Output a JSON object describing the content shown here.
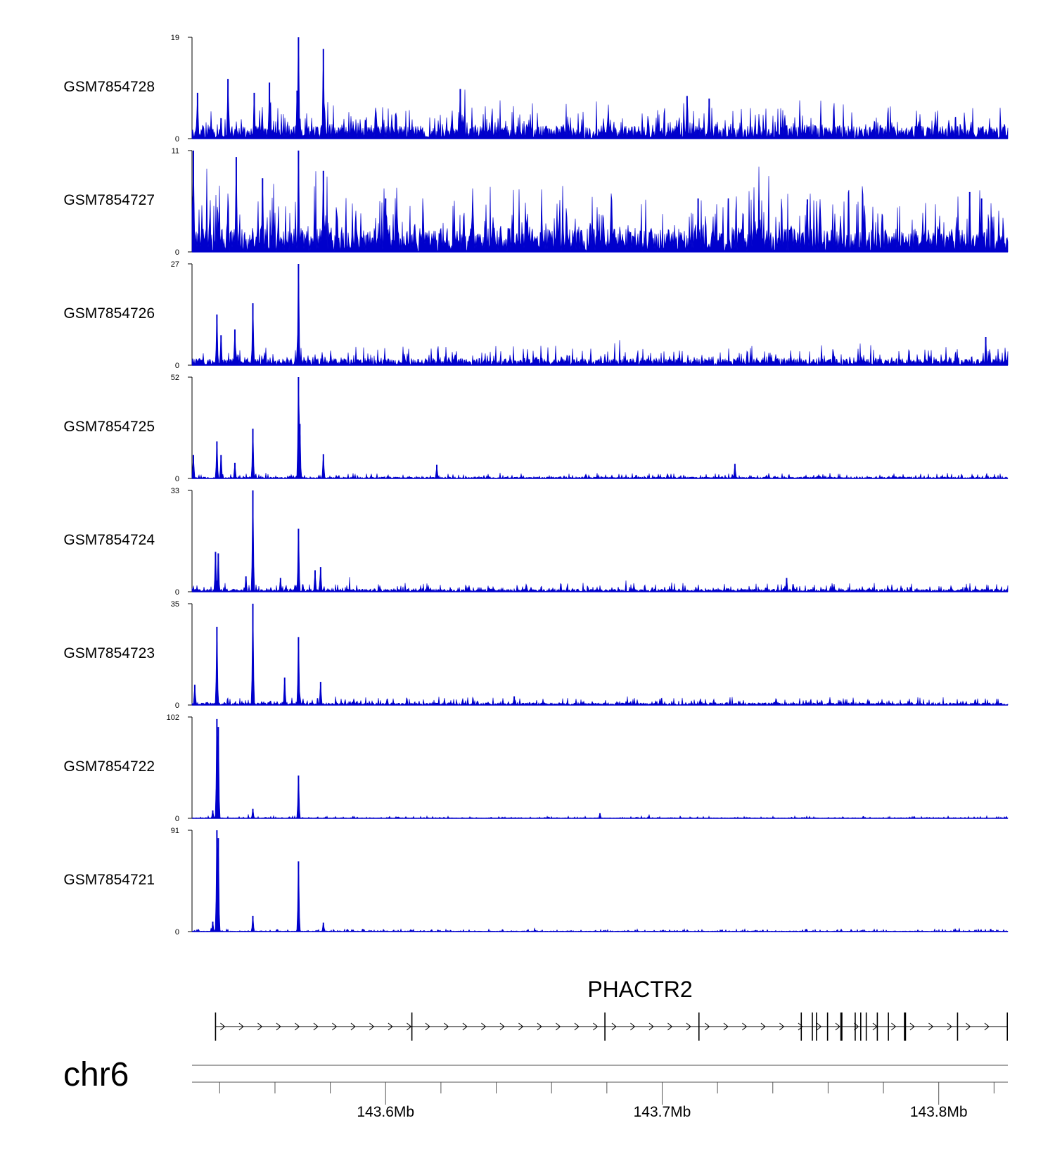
{
  "chart_data": {
    "type": "area",
    "title": "",
    "xlabel": "",
    "ylabel": "",
    "chromosome": "chr6",
    "gene": "PHACTR2",
    "genomic_range_mb": [
      143.53,
      143.825
    ],
    "x_tick_labels": [
      "143.6Mb",
      "143.7Mb",
      "143.8Mb"
    ],
    "x_tick_values_mb": [
      143.6,
      143.7,
      143.8
    ],
    "minor_tick_step_mb": 0.02,
    "colors": {
      "signal": "#0000cc",
      "axis": "#000000",
      "gene": "#000000"
    },
    "series": [
      {
        "name": "GSM7854728",
        "ylim": [
          0,
          19
        ],
        "y_tick_labels": [
          "19",
          "0"
        ],
        "baseline": 2.4,
        "noise": 2.0,
        "peaks": [
          {
            "x": 143.5405,
            "y": 3.8
          },
          {
            "x": 143.543,
            "y": 11.2
          },
          {
            "x": 143.558,
            "y": 10.5
          },
          {
            "x": 143.568,
            "y": 9.0
          },
          {
            "x": 143.5685,
            "y": 19.0
          },
          {
            "x": 143.5775,
            "y": 16.8
          },
          {
            "x": 143.627,
            "y": 9.3
          },
          {
            "x": 143.709,
            "y": 8.0
          },
          {
            "x": 143.717,
            "y": 7.5
          },
          {
            "x": 143.532,
            "y": 8.6
          },
          {
            "x": 143.5525,
            "y": 8.6
          }
        ]
      },
      {
        "name": "GSM7854727",
        "ylim": [
          0,
          11
        ],
        "y_tick_labels": [
          "11",
          "0"
        ],
        "baseline": 2.6,
        "noise": 2.2,
        "peaks": [
          {
            "x": 143.5305,
            "y": 11.0
          },
          {
            "x": 143.546,
            "y": 10.3
          },
          {
            "x": 143.5555,
            "y": 8.0
          },
          {
            "x": 143.5685,
            "y": 11.0
          },
          {
            "x": 143.5775,
            "y": 8.8
          },
          {
            "x": 143.6,
            "y": 5.8
          },
          {
            "x": 143.713,
            "y": 5.8
          },
          {
            "x": 143.735,
            "y": 5.6
          },
          {
            "x": 143.7525,
            "y": 5.7
          },
          {
            "x": 143.8112,
            "y": 6.5
          },
          {
            "x": 143.8155,
            "y": 5.8
          }
        ]
      },
      {
        "name": "GSM7854726",
        "ylim": [
          0,
          27
        ],
        "y_tick_labels": [
          "27",
          "0"
        ],
        "baseline": 1.8,
        "noise": 1.6,
        "peaks": [
          {
            "x": 143.539,
            "y": 13.5
          },
          {
            "x": 143.5455,
            "y": 9.5
          },
          {
            "x": 143.552,
            "y": 16.5
          },
          {
            "x": 143.5685,
            "y": 27.0
          },
          {
            "x": 143.5405,
            "y": 8.0
          },
          {
            "x": 143.817,
            "y": 7.5
          }
        ]
      },
      {
        "name": "GSM7854725",
        "ylim": [
          0,
          52
        ],
        "y_tick_labels": [
          "52",
          "0"
        ],
        "baseline": 0.8,
        "noise": 0.9,
        "peaks": [
          {
            "x": 143.5305,
            "y": 12.0
          },
          {
            "x": 143.539,
            "y": 19.0
          },
          {
            "x": 143.5405,
            "y": 12.0
          },
          {
            "x": 143.5455,
            "y": 8.0
          },
          {
            "x": 143.552,
            "y": 25.5
          },
          {
            "x": 143.5685,
            "y": 52.0
          },
          {
            "x": 143.569,
            "y": 28.0
          },
          {
            "x": 143.5775,
            "y": 12.5
          },
          {
            "x": 143.6185,
            "y": 7.0
          },
          {
            "x": 143.7263,
            "y": 7.5
          }
        ]
      },
      {
        "name": "GSM7854724",
        "ylim": [
          0,
          33
        ],
        "y_tick_labels": [
          "33",
          "0"
        ],
        "baseline": 0.9,
        "noise": 0.9,
        "peaks": [
          {
            "x": 143.5385,
            "y": 13.0
          },
          {
            "x": 143.5395,
            "y": 12.5
          },
          {
            "x": 143.552,
            "y": 33.0
          },
          {
            "x": 143.5685,
            "y": 20.5
          },
          {
            "x": 143.5765,
            "y": 8.0
          },
          {
            "x": 143.5745,
            "y": 7.0
          },
          {
            "x": 143.5495,
            "y": 5.0
          },
          {
            "x": 143.562,
            "y": 4.5
          },
          {
            "x": 143.745,
            "y": 4.5
          }
        ]
      },
      {
        "name": "GSM7854723",
        "ylim": [
          0,
          35
        ],
        "y_tick_labels": [
          "35",
          "0"
        ],
        "baseline": 0.8,
        "noise": 0.9,
        "peaks": [
          {
            "x": 143.539,
            "y": 27.0
          },
          {
            "x": 143.552,
            "y": 35.0
          },
          {
            "x": 143.5635,
            "y": 9.5
          },
          {
            "x": 143.5685,
            "y": 23.5
          },
          {
            "x": 143.5765,
            "y": 8.0
          },
          {
            "x": 143.531,
            "y": 7.0
          },
          {
            "x": 143.6465,
            "y": 3.0
          }
        ]
      },
      {
        "name": "GSM7854722",
        "ylim": [
          0,
          102
        ],
        "y_tick_labels": [
          "102",
          "0"
        ],
        "baseline": 0.6,
        "noise": 0.8,
        "peaks": [
          {
            "x": 143.539,
            "y": 100.0
          },
          {
            "x": 143.5395,
            "y": 92.0
          },
          {
            "x": 143.552,
            "y": 9.5
          },
          {
            "x": 143.5685,
            "y": 43.0
          },
          {
            "x": 143.5375,
            "y": 8.0
          },
          {
            "x": 143.6775,
            "y": 5.0
          }
        ]
      },
      {
        "name": "GSM7854721",
        "ylim": [
          0,
          91
        ],
        "y_tick_labels": [
          "91",
          "0"
        ],
        "baseline": 0.6,
        "noise": 0.8,
        "peaks": [
          {
            "x": 143.539,
            "y": 91.0
          },
          {
            "x": 143.5395,
            "y": 84.0
          },
          {
            "x": 143.5375,
            "y": 9.0
          },
          {
            "x": 143.552,
            "y": 14.0
          },
          {
            "x": 143.5685,
            "y": 63.0
          },
          {
            "x": 143.5775,
            "y": 8.0
          }
        ]
      }
    ],
    "gene_model": {
      "strand": "+",
      "start_mb": 143.5385,
      "end_mb": 143.825,
      "exons_mb": [
        143.5385,
        143.6095,
        143.6793,
        143.7133,
        143.7503,
        143.7543,
        143.7558,
        143.7598,
        143.7648,
        143.7698,
        143.7718,
        143.7738,
        143.7778,
        143.7818,
        143.7878,
        143.8068,
        143.8248
      ]
    }
  }
}
